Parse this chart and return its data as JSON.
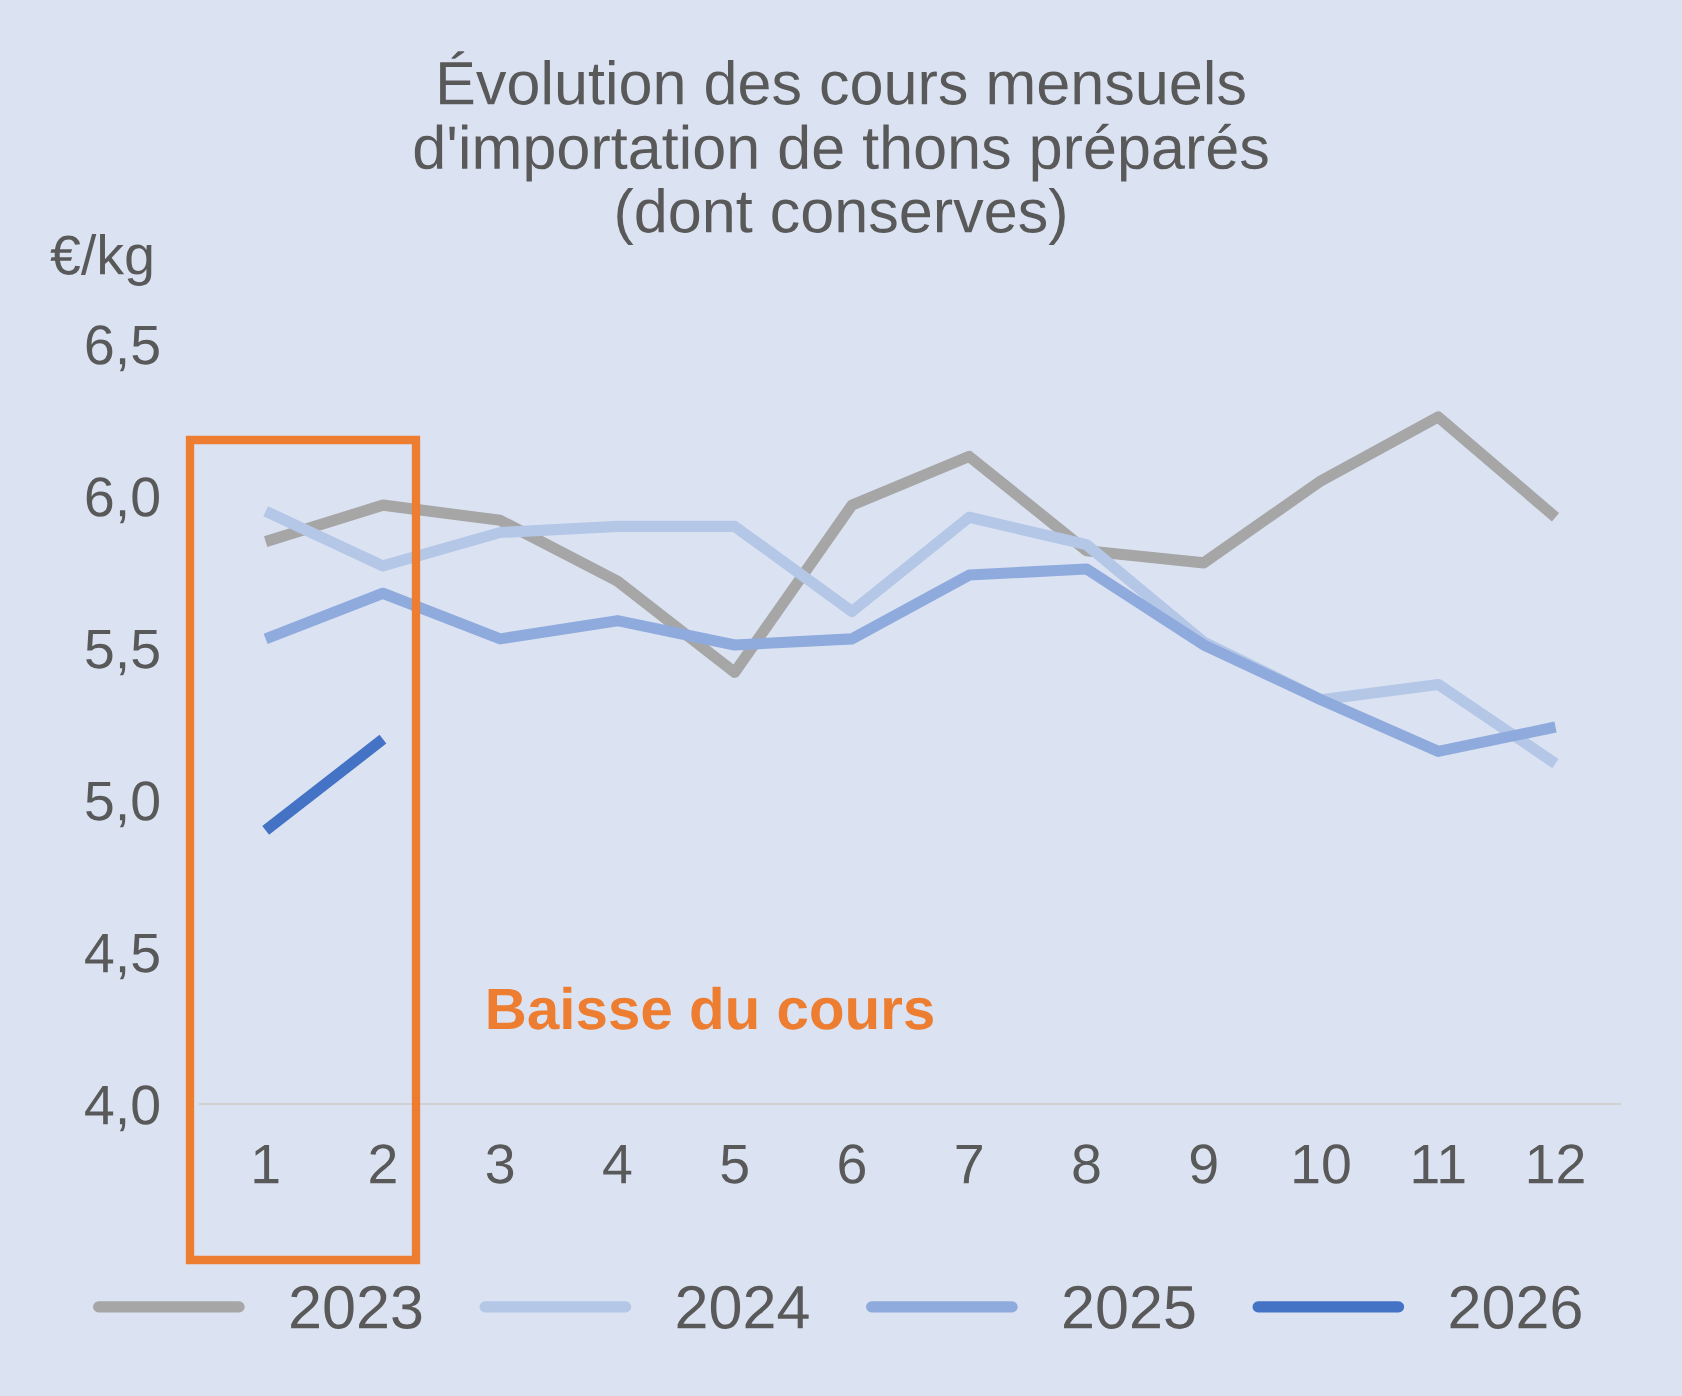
{
  "chart_data": {
    "type": "line",
    "title": "Évolution des cours mensuels\nd'importation de thons préparés\n(dont conserves)",
    "ylabel": "€/kg",
    "categories": [
      "1",
      "2",
      "3",
      "4",
      "5",
      "6",
      "7",
      "8",
      "9",
      "10",
      "11",
      "12"
    ],
    "series": [
      {
        "name": "2023",
        "color": "#a6a6a6",
        "values": [
          5.85,
          5.97,
          5.92,
          5.72,
          5.42,
          5.97,
          6.13,
          5.82,
          5.78,
          6.05,
          6.26,
          5.93
        ]
      },
      {
        "name": "2024",
        "color": "#b4c7e7",
        "values": [
          5.95,
          5.77,
          5.88,
          5.9,
          5.9,
          5.62,
          5.93,
          5.84,
          5.52,
          5.33,
          5.38,
          5.12
        ]
      },
      {
        "name": "2025",
        "color": "#8faadc",
        "values": [
          5.53,
          5.68,
          5.53,
          5.59,
          5.51,
          5.53,
          5.74,
          5.76,
          5.51,
          5.33,
          5.16,
          5.24
        ]
      },
      {
        "name": "2026",
        "color": "#4472c4",
        "values": [
          4.9,
          5.2,
          null,
          null,
          null,
          null,
          null,
          null,
          null,
          null,
          null,
          null
        ]
      }
    ],
    "ylim": [
      4.0,
      6.5
    ],
    "yticks": [
      {
        "value": 4.0,
        "label": "4,0"
      },
      {
        "value": 4.5,
        "label": "4,5"
      },
      {
        "value": 5.0,
        "label": "5,0"
      },
      {
        "value": 5.5,
        "label": "5,5"
      },
      {
        "value": 6.0,
        "label": "6,0"
      },
      {
        "value": 6.5,
        "label": "6,5"
      }
    ],
    "grid": false,
    "legend": "bottom",
    "marker": "none",
    "line_style": "solid",
    "annotations": [
      "Baisse du cours"
    ]
  }
}
